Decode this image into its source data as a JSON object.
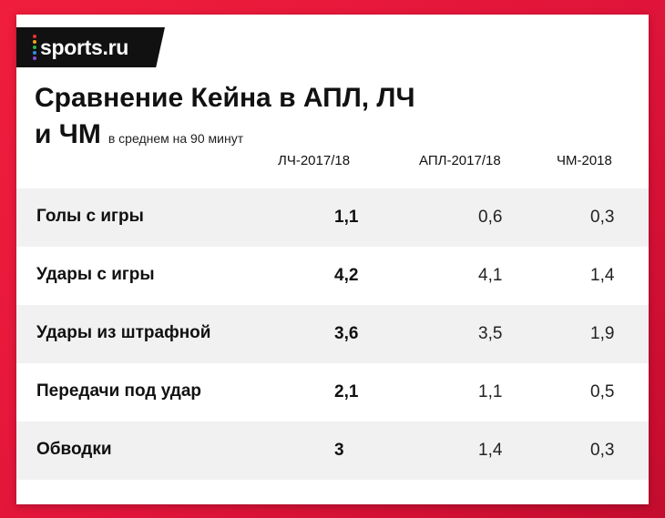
{
  "brand": {
    "name": "sports.ru",
    "dot_colors": [
      "#e8342b",
      "#f3a21a",
      "#36b24a",
      "#2f8fe0",
      "#8c4cd9"
    ]
  },
  "title_line1": "Сравнение Кейна в АПЛ, ЛЧ",
  "title_line2": "и ЧМ",
  "subtitle": "в среднем на 90 минут",
  "colors": {
    "background": "#e8193c",
    "card": "#ffffff",
    "row_shade": "#f1f1f1"
  },
  "chart_data": {
    "type": "table",
    "columns": [
      "ЛЧ-2017/18",
      "АПЛ-2017/18",
      "ЧМ-2018"
    ],
    "rows": [
      {
        "label": "Голы с игры",
        "values": [
          "1,1",
          "0,6",
          "0,3"
        ]
      },
      {
        "label": "Удары с игры",
        "values": [
          "4,2",
          "4,1",
          "1,4"
        ]
      },
      {
        "label": "Удары из штрафной",
        "values": [
          "3,6",
          "3,5",
          "1,9"
        ]
      },
      {
        "label": "Передачи под удар",
        "values": [
          "2,1",
          "1,1",
          "0,5"
        ]
      },
      {
        "label": "Обводки",
        "values": [
          "3",
          "1,4",
          "0,3"
        ]
      }
    ]
  }
}
